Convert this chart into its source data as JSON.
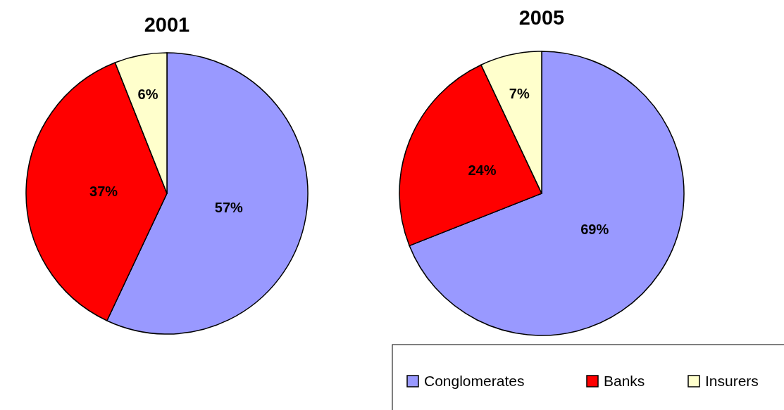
{
  "chart_data": [
    {
      "type": "pie",
      "title": "2001",
      "categories": [
        null,
        null,
        null
      ],
      "values": [
        57,
        37,
        6
      ],
      "colors": [
        "#9999ff",
        "#ff0000",
        "#ffffcc"
      ],
      "value_labels": [
        "57%",
        "37%",
        "6%"
      ]
    },
    {
      "type": "pie",
      "title": "2005",
      "categories": [
        "Conglomerates",
        "Banks",
        "Insurers"
      ],
      "values": [
        69,
        24,
        7
      ],
      "colors": [
        "#9999ff",
        "#ff0000",
        "#ffffcc"
      ],
      "value_labels": [
        "69%",
        "24%",
        "7%"
      ],
      "legend": "bottom right"
    }
  ]
}
